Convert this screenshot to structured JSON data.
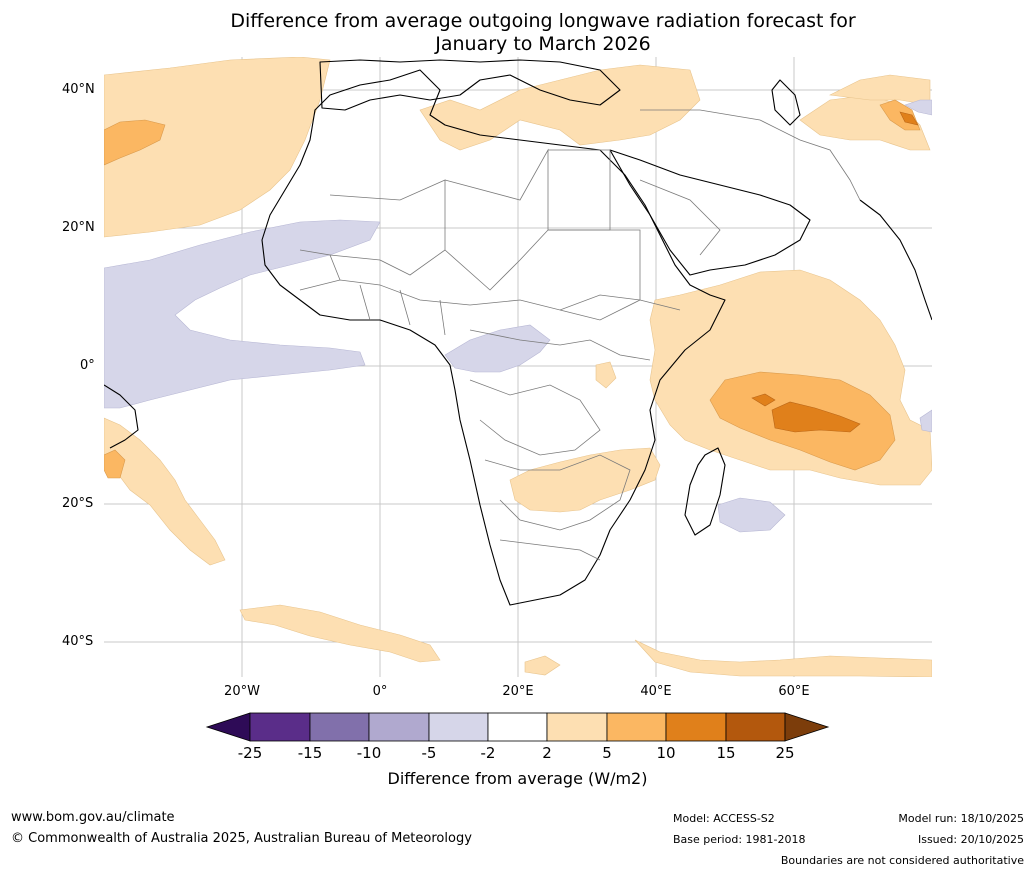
{
  "title": {
    "line1": "Difference from average outgoing longwave radiation forecast for",
    "line2": "January to March 2026"
  },
  "axes": {
    "lat_labels": [
      "40°N",
      "20°N",
      "0°",
      "20°S",
      "40°S"
    ],
    "lon_labels": [
      "20°W",
      "0°",
      "20°E",
      "40°E",
      "60°E"
    ]
  },
  "colorbar": {
    "ticks": [
      "-25",
      "-15",
      "-10",
      "-5",
      "-2",
      "2",
      "5",
      "10",
      "15",
      "25"
    ],
    "colors": {
      "below": "#2e0b57",
      "b1": "#5a2d89",
      "b2": "#8170ab",
      "b3": "#b0a9cf",
      "b4": "#d6d6e9",
      "b5": "#ffffff",
      "b6": "#fddfb2",
      "b7": "#fbb762",
      "b8": "#e0801b",
      "b9": "#b3580d",
      "above": "#7c3d0b"
    },
    "label": "Difference from average (W/m2)"
  },
  "footer": {
    "url": "www.bom.gov.au/climate",
    "copyright": "© Commonwealth of Australia 2025, Australian Bureau of Meteorology",
    "model": "Model: ACCESS-S2",
    "base_period": "Base period: 1981-2018",
    "model_run": "Model run: 18/10/2025",
    "issued": "Issued: 20/10/2025",
    "disclaimer": "Boundaries are not considered authoritative"
  }
}
